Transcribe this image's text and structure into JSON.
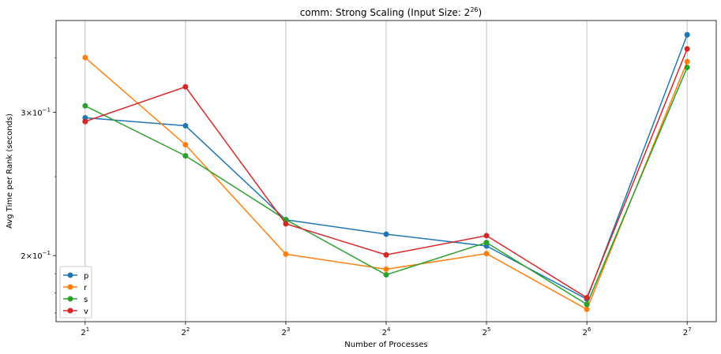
{
  "chart_data": {
    "type": "line",
    "title": {
      "base": "comm: Strong Scaling (Input Size: 2",
      "sup": "26",
      "close": ")"
    },
    "xlabel": "Number of Processes",
    "ylabel": "Avg Time per Rank (seconds)",
    "x": [
      2,
      4,
      8,
      16,
      32,
      64,
      128
    ],
    "x_ticks": [
      {
        "value": 2,
        "base": "2",
        "exp": "1"
      },
      {
        "value": 4,
        "base": "2",
        "exp": "2"
      },
      {
        "value": 8,
        "base": "2",
        "exp": "3"
      },
      {
        "value": 16,
        "base": "2",
        "exp": "4"
      },
      {
        "value": 32,
        "base": "2",
        "exp": "5"
      },
      {
        "value": 64,
        "base": "2",
        "exp": "6"
      },
      {
        "value": 128,
        "base": "2",
        "exp": "7"
      }
    ],
    "y_scale": "log",
    "ylim": [
      0.1659,
      0.3888
    ],
    "y_ticks": [
      {
        "value": 0.2,
        "mant": "2",
        "base": "×10",
        "exp": "−1"
      },
      {
        "value": 0.3,
        "mant": "3",
        "base": "×10",
        "exp": "−1"
      }
    ],
    "grid": "vertical",
    "legend": "lower-left",
    "series": [
      {
        "name": "p",
        "color": "#1f77b4",
        "values": [
          0.2953,
          0.2887,
          0.2213,
          0.2125,
          0.2055,
          0.1768,
          0.3734
        ]
      },
      {
        "name": "r",
        "color": "#ff7f0e",
        "values": [
          0.3501,
          0.2736,
          0.2008,
          0.1924,
          0.2011,
          0.1718,
          0.3461
        ]
      },
      {
        "name": "s",
        "color": "#2ca02c",
        "values": [
          0.3054,
          0.2652,
          0.2214,
          0.1894,
          0.2075,
          0.1742,
          0.3405
        ]
      },
      {
        "name": "v",
        "color": "#d62728",
        "values": [
          0.2922,
          0.3223,
          0.2188,
          0.2004,
          0.2116,
          0.1775,
          0.3588
        ]
      }
    ]
  }
}
